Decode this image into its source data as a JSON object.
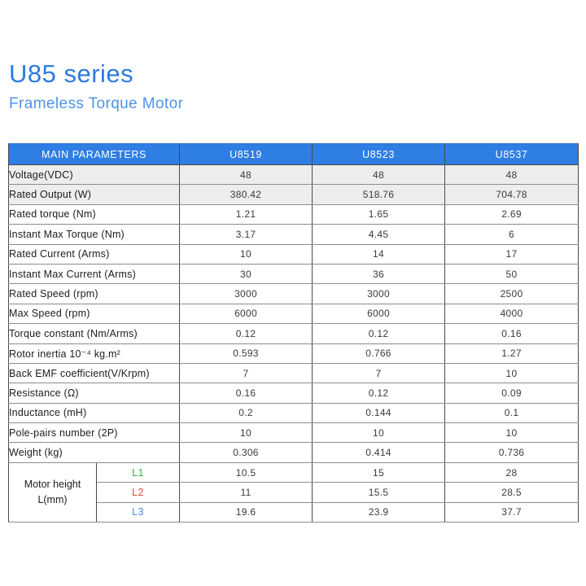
{
  "page": {
    "title": "U85 series",
    "subtitle": "Frameless Torque Motor"
  },
  "colors": {
    "title_blue": "#2b7ae2",
    "subtitle_blue": "#4f94e8",
    "header_blue": "#2e7ee4",
    "shaded_row_gray": "#ededed",
    "l1_green": "#3fae49",
    "l2_red": "#e5493c",
    "l3_blue": "#4a90e2"
  },
  "table": {
    "header": {
      "param_label": "MAIN PARAMETERS",
      "models": [
        "U8519",
        "U8523",
        "U8537"
      ]
    },
    "rows": [
      {
        "label": "Voltage(VDC)",
        "values": [
          "48",
          "48",
          "48"
        ],
        "shaded": true
      },
      {
        "label": "Rated Output (W)",
        "values": [
          "380.42",
          "518.76",
          "704.78"
        ],
        "shaded": true
      },
      {
        "label": "Rated torque (Nm)",
        "values": [
          "1.21",
          "1.65",
          "2.69"
        ],
        "shaded": false
      },
      {
        "label": "Instant Max Torque (Nm)",
        "values": [
          "3.17",
          "4.45",
          "6"
        ],
        "shaded": false
      },
      {
        "label": "Rated Current (Arms)",
        "values": [
          "10",
          "14",
          "17"
        ],
        "shaded": false
      },
      {
        "label": "Instant Max Current (Arms)",
        "values": [
          "30",
          "36",
          "50"
        ],
        "shaded": false
      },
      {
        "label": "Rated Speed (rpm)",
        "values": [
          "3000",
          "3000",
          "2500"
        ],
        "shaded": false
      },
      {
        "label": "Max  Speed (rpm)",
        "values": [
          "6000",
          "6000",
          "4000"
        ],
        "shaded": false
      },
      {
        "label": "Torque constant (Nm/Arms)",
        "values": [
          "0.12",
          "0.12",
          "0.16"
        ],
        "shaded": false
      },
      {
        "label": "Rotor inertia 10⁻⁴ kg.m²",
        "values": [
          "0.593",
          "0.766",
          "1.27"
        ],
        "shaded": false
      },
      {
        "label": "Back EMF coefficient(V/Krpm)",
        "values": [
          "7",
          "7",
          "10"
        ],
        "shaded": false
      },
      {
        "label": " Resistance (Ω)",
        "values": [
          "0.16",
          "0.12",
          "0.09"
        ],
        "shaded": false
      },
      {
        "label": " Inductance (mH)",
        "values": [
          "0.2",
          "0.144",
          "0.1"
        ],
        "shaded": false
      },
      {
        "label": "Pole-pairs number (2P)",
        "values": [
          "10",
          "10",
          "10"
        ],
        "shaded": false
      },
      {
        "label": "Weight (kg)",
        "values": [
          "0.306",
          "0.414",
          "0.736"
        ],
        "shaded": false
      }
    ],
    "motor_height": {
      "label_line1": "Motor height",
      "label_line2": "L(mm)",
      "sub_rows": [
        {
          "label": "L1",
          "color": "#3fae49",
          "values": [
            "10.5",
            "15",
            "28"
          ]
        },
        {
          "label": "L2",
          "color": "#e5493c",
          "values": [
            "11",
            "15.5",
            "28.5"
          ]
        },
        {
          "label": "L3",
          "color": "#4a90e2",
          "values": [
            "19.6",
            "23.9",
            "37.7"
          ]
        }
      ]
    }
  }
}
